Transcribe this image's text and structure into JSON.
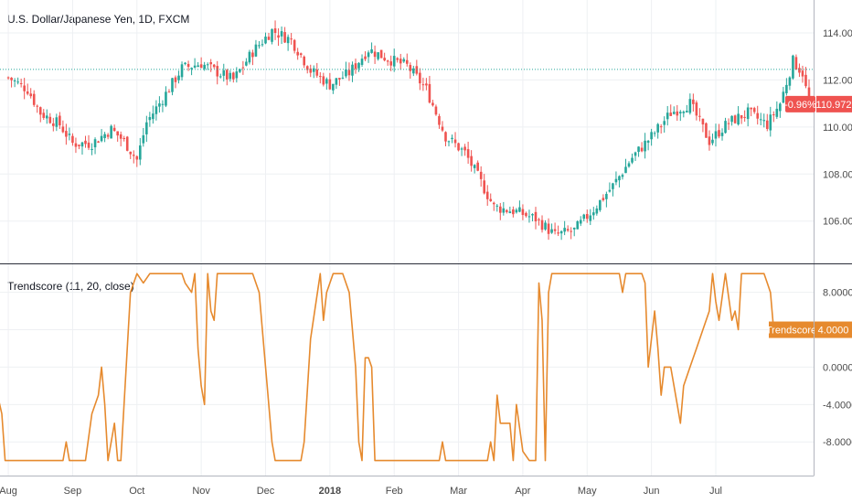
{
  "title": "U.S. Dollar/Japanese Yen, 1D, FXCM",
  "indicator_title": "Trendscore (11, 20, close)",
  "colors": {
    "up": "#26a69a",
    "down": "#ef5350",
    "indicator": "#e68a2e",
    "grid": "#eef0f3",
    "axis_text": "#4a4a4a",
    "last_price_bg": "#ef5350",
    "dotted_line": "#26a69a"
  },
  "last_price_badge": {
    "change": "-0.96%",
    "price": "110.972"
  },
  "indicator_badge": {
    "name": "Trendscore",
    "value": "4.0000"
  },
  "chart_data": [
    {
      "type": "candlestick",
      "title": "U.S. Dollar/Japanese Yen, 1D, FXCM",
      "x_range": [
        -0.2,
        12.45
      ],
      "ylim": [
        104.2,
        115.4
      ],
      "y_ticks": [
        "114.000",
        "112.000",
        "110.000",
        "108.000",
        "106.000"
      ],
      "y_tick_values": [
        114,
        112,
        110,
        108,
        106
      ],
      "reference_line": 112.45,
      "last_price": 110.972,
      "close_path": [
        [
          0.0,
          112.1
        ],
        [
          0.3,
          111.6
        ],
        [
          0.5,
          110.6
        ],
        [
          0.8,
          110.1
        ],
        [
          1.0,
          109.3
        ],
        [
          1.3,
          109.3
        ],
        [
          1.6,
          109.9
        ],
        [
          1.8,
          109.4
        ],
        [
          2.0,
          108.6
        ],
        [
          2.15,
          110.2
        ],
        [
          2.4,
          111.2
        ],
        [
          2.7,
          112.5
        ],
        [
          3.0,
          112.7
        ],
        [
          3.2,
          112.4
        ],
        [
          3.5,
          112.0
        ],
        [
          3.8,
          113.2
        ],
        [
          4.1,
          114.1
        ],
        [
          4.4,
          113.7
        ],
        [
          4.7,
          112.4
        ],
        [
          5.0,
          111.8
        ],
        [
          5.3,
          112.3
        ],
        [
          5.6,
          113.3
        ],
        [
          5.9,
          112.9
        ],
        [
          6.2,
          112.6
        ],
        [
          6.5,
          111.6
        ],
        [
          6.8,
          109.6
        ],
        [
          7.1,
          108.9
        ],
        [
          7.3,
          107.9
        ],
        [
          7.55,
          106.6
        ],
        [
          7.9,
          106.4
        ],
        [
          8.2,
          106.1
        ],
        [
          8.5,
          105.4
        ],
        [
          8.8,
          105.6
        ],
        [
          9.1,
          106.5
        ],
        [
          9.4,
          107.5
        ],
        [
          9.7,
          108.7
        ],
        [
          10.0,
          109.6
        ],
        [
          10.3,
          110.6
        ],
        [
          10.6,
          111.0
        ],
        [
          10.9,
          109.4
        ],
        [
          11.2,
          110.2
        ],
        [
          11.5,
          110.6
        ],
        [
          11.8,
          110.1
        ],
        [
          12.0,
          111.0
        ],
        [
          12.2,
          112.8
        ],
        [
          12.35,
          112.3
        ],
        [
          12.45,
          110.97
        ]
      ]
    },
    {
      "type": "line",
      "title": "Trendscore (11, 20, close)",
      "x_range": [
        -0.2,
        12.45
      ],
      "ylim": [
        -11.6,
        11.0
      ],
      "y_ticks": [
        "8.0000",
        "4.0000",
        "0.0000",
        "-4.0000",
        "-8.0000"
      ],
      "y_tick_values": [
        8,
        4,
        0,
        -4,
        -8
      ],
      "x_tick_labels": [
        "Aug",
        "Sep",
        "Oct",
        "Nov",
        "Dec",
        "2018",
        "Feb",
        "Mar",
        "Apr",
        "May",
        "Jun",
        "Jul"
      ],
      "x_tick_positions": [
        0,
        1,
        2,
        3,
        4,
        5,
        6,
        7,
        8,
        9,
        10,
        11
      ],
      "series": [
        {
          "points": [
            [
              -0.2,
              -2
            ],
            [
              -0.1,
              -5
            ],
            [
              -0.05,
              -10
            ],
            [
              0.85,
              -10
            ],
            [
              0.9,
              -8
            ],
            [
              0.95,
              -10
            ],
            [
              1.2,
              -10
            ],
            [
              1.3,
              -5
            ],
            [
              1.4,
              -3
            ],
            [
              1.45,
              0
            ],
            [
              1.5,
              -4
            ],
            [
              1.55,
              -10
            ],
            [
              1.65,
              -6
            ],
            [
              1.7,
              -10
            ],
            [
              1.75,
              -10
            ],
            [
              1.85,
              2
            ],
            [
              1.9,
              8
            ],
            [
              2.0,
              10
            ],
            [
              2.1,
              9
            ],
            [
              2.2,
              10
            ],
            [
              2.7,
              10
            ],
            [
              2.75,
              9
            ],
            [
              2.85,
              8
            ],
            [
              2.9,
              10
            ],
            [
              2.95,
              2
            ],
            [
              3.0,
              -2
            ],
            [
              3.05,
              -4
            ],
            [
              3.1,
              10
            ],
            [
              3.15,
              6
            ],
            [
              3.2,
              5
            ],
            [
              3.25,
              10
            ],
            [
              3.3,
              10
            ],
            [
              3.8,
              10
            ],
            [
              3.9,
              8
            ],
            [
              4.0,
              0
            ],
            [
              4.05,
              -4
            ],
            [
              4.1,
              -8
            ],
            [
              4.15,
              -10
            ],
            [
              4.55,
              -10
            ],
            [
              4.6,
              -8
            ],
            [
              4.7,
              3
            ],
            [
              4.85,
              10
            ],
            [
              4.9,
              5
            ],
            [
              4.95,
              8
            ],
            [
              5.05,
              10
            ],
            [
              5.2,
              10
            ],
            [
              5.3,
              8
            ],
            [
              5.35,
              4
            ],
            [
              5.4,
              0
            ],
            [
              5.45,
              -8
            ],
            [
              5.5,
              -10
            ],
            [
              5.55,
              1
            ],
            [
              5.6,
              1
            ],
            [
              5.65,
              0
            ],
            [
              5.7,
              -10
            ],
            [
              6.7,
              -10
            ],
            [
              6.75,
              -8
            ],
            [
              6.8,
              -10
            ],
            [
              7.45,
              -10
            ],
            [
              7.5,
              -8
            ],
            [
              7.55,
              -10
            ],
            [
              7.6,
              -3
            ],
            [
              7.65,
              -6
            ],
            [
              7.8,
              -6
            ],
            [
              7.85,
              -10
            ],
            [
              7.9,
              -4
            ],
            [
              8.0,
              -9
            ],
            [
              8.1,
              -10
            ],
            [
              8.2,
              -10
            ],
            [
              8.25,
              9
            ],
            [
              8.3,
              5
            ],
            [
              8.35,
              -10
            ],
            [
              8.4,
              8
            ],
            [
              8.45,
              10
            ],
            [
              9.5,
              10
            ],
            [
              9.55,
              8
            ],
            [
              9.6,
              10
            ],
            [
              9.85,
              10
            ],
            [
              9.9,
              9
            ],
            [
              9.95,
              0
            ],
            [
              10.0,
              3
            ],
            [
              10.05,
              6
            ],
            [
              10.1,
              2
            ],
            [
              10.15,
              -3
            ],
            [
              10.2,
              0
            ],
            [
              10.3,
              0
            ],
            [
              10.4,
              -4
            ],
            [
              10.45,
              -6
            ],
            [
              10.5,
              -2
            ],
            [
              10.6,
              0
            ],
            [
              10.7,
              2
            ],
            [
              10.8,
              4
            ],
            [
              10.9,
              6
            ],
            [
              10.95,
              10
            ],
            [
              11.0,
              7
            ],
            [
              11.05,
              5
            ],
            [
              11.15,
              10
            ],
            [
              11.25,
              5
            ],
            [
              11.3,
              6
            ],
            [
              11.35,
              4
            ],
            [
              11.4,
              10
            ],
            [
              11.75,
              10
            ],
            [
              11.8,
              9
            ],
            [
              11.85,
              8
            ],
            [
              11.9,
              4
            ]
          ]
        }
      ]
    }
  ]
}
